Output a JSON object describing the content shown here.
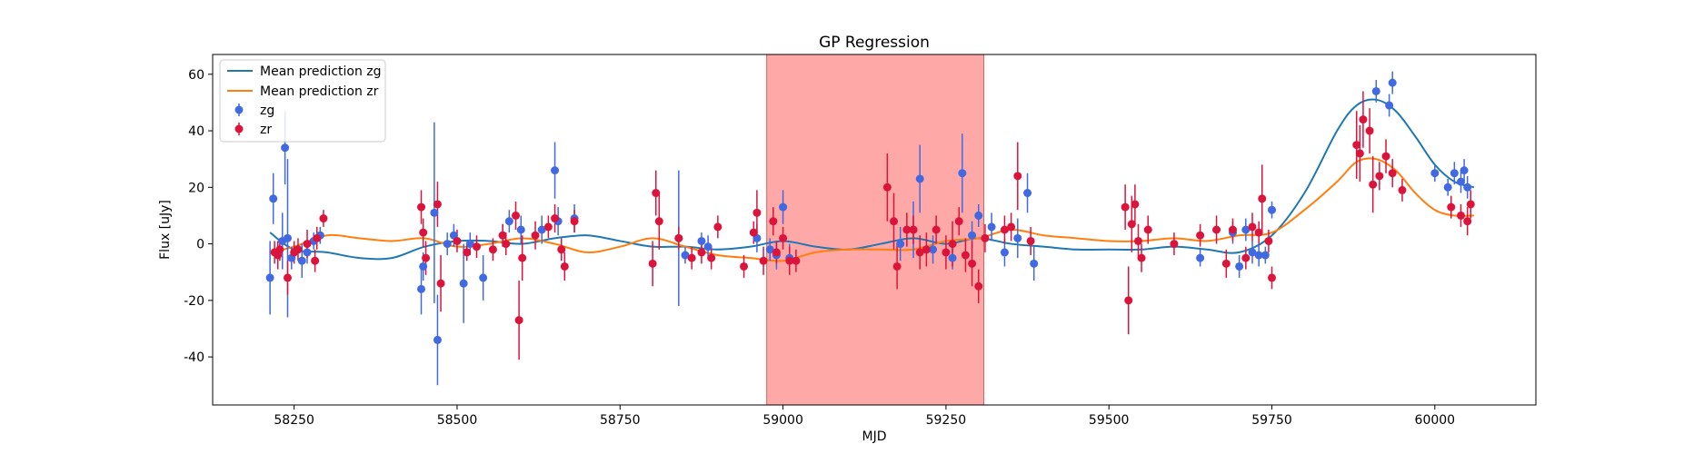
{
  "chart_data": {
    "type": "scatter",
    "title": "GP Regression",
    "xlabel": "MJD",
    "ylabel": "Flux [uJy]",
    "xlim": [
      58125,
      60155
    ],
    "ylim": [
      -57,
      67
    ],
    "xticks": [
      58250,
      58500,
      58750,
      59000,
      59250,
      59500,
      59750,
      60000
    ],
    "yticks": [
      -40,
      -20,
      0,
      20,
      40,
      60
    ],
    "grid": false,
    "legend_position": "top-left",
    "shaded_region": {
      "x0": 58975,
      "x1": 59308,
      "color": "#ff9999"
    },
    "colors": {
      "zg_points": "#4169e1",
      "zr_points": "#dc143c",
      "zg_line": "#1f77b4",
      "zr_line": "#ff7f0e"
    },
    "legend": {
      "line_zg": "Mean prediction zg",
      "line_zr": "Mean prediction zr",
      "points_zg": "zg",
      "points_zr": "zr"
    },
    "series": [
      {
        "name": "zg",
        "kind": "points",
        "x": [
          58213,
          58218,
          58232,
          58236,
          58240,
          58246,
          58262,
          58270,
          58280,
          58290,
          58445,
          58448,
          58465,
          58470,
          58485,
          58495,
          58510,
          58520,
          58540,
          58570,
          58580,
          58598,
          58630,
          58650,
          58655,
          58680,
          58840,
          58850,
          58875,
          58885,
          58960,
          58980,
          58990,
          59000,
          59010,
          59180,
          59200,
          59210,
          59230,
          59260,
          59275,
          59290,
          59300,
          59320,
          59340,
          59360,
          59375,
          59385,
          59640,
          59690,
          59700,
          59710,
          59720,
          59730,
          59740,
          59750,
          59910,
          59930,
          59935,
          60000,
          60020,
          60030,
          60040,
          60045,
          60050
        ],
        "y": [
          -12,
          16,
          1,
          34,
          2,
          -5,
          -6,
          -3,
          1,
          3,
          -16,
          -8,
          11,
          -34,
          0,
          3,
          -14,
          0,
          -12,
          3,
          8,
          5,
          5,
          26,
          8,
          9,
          2,
          -4,
          1,
          -1,
          2,
          -2,
          -4,
          13,
          -5,
          0,
          5,
          23,
          -2,
          -5,
          25,
          3,
          10,
          6,
          -3,
          2,
          18,
          -7,
          -5,
          4,
          -8,
          5,
          -3,
          -4,
          -4,
          12,
          54,
          49,
          57,
          25,
          20,
          25,
          22,
          26,
          20
        ],
        "err": [
          13,
          9,
          10,
          13,
          28,
          4,
          6,
          4,
          3,
          3,
          9,
          5,
          32,
          16,
          4,
          4,
          14,
          4,
          8,
          4,
          4,
          5,
          5,
          10,
          5,
          5,
          24,
          3,
          3,
          4,
          5,
          4,
          5,
          6,
          5,
          6,
          10,
          12,
          5,
          4,
          14,
          5,
          4,
          5,
          5,
          7,
          7,
          6,
          3,
          4,
          4,
          4,
          4,
          4,
          3,
          3,
          4,
          4,
          4,
          3,
          3,
          4,
          4,
          4,
          4
        ]
      },
      {
        "name": "zr",
        "kind": "points",
        "x": [
          58220,
          58225,
          58228,
          58240,
          58250,
          58256,
          58270,
          58282,
          58285,
          58295,
          58445,
          58448,
          58452,
          58470,
          58475,
          58500,
          58515,
          58530,
          58555,
          58570,
          58575,
          58590,
          58595,
          58600,
          58620,
          58640,
          58650,
          58660,
          58665,
          58680,
          58800,
          58805,
          58810,
          58840,
          58860,
          58875,
          58890,
          58900,
          58940,
          58955,
          58960,
          58970,
          58985,
          58990,
          59000,
          59010,
          59020,
          59160,
          59170,
          59175,
          59190,
          59200,
          59210,
          59220,
          59235,
          59250,
          59260,
          59270,
          59280,
          59290,
          59300,
          59310,
          59340,
          59350,
          59360,
          59380,
          59525,
          59530,
          59535,
          59540,
          59545,
          59550,
          59560,
          59600,
          59640,
          59665,
          59680,
          59690,
          59710,
          59720,
          59730,
          59735,
          59745,
          59750,
          59880,
          59885,
          59890,
          59900,
          59905,
          59915,
          59925,
          59935,
          59950,
          60025,
          60040,
          60050,
          60055
        ],
        "y": [
          -3,
          -4,
          -2,
          -12,
          -3,
          -2,
          0,
          -6,
          2,
          9,
          13,
          4,
          -5,
          14,
          -14,
          1,
          -3,
          -1,
          -2,
          3,
          0,
          10,
          -27,
          -5,
          3,
          6,
          9,
          -2,
          -8,
          8,
          -7,
          18,
          8,
          2,
          -5,
          -3,
          -5,
          6,
          -8,
          4,
          11,
          -6,
          8,
          -3,
          2,
          -6,
          -6,
          20,
          8,
          -8,
          5,
          5,
          -3,
          -2,
          5,
          -3,
          0,
          8,
          -4,
          -7,
          -15,
          2,
          5,
          6,
          24,
          1,
          13,
          -20,
          7,
          14,
          1,
          -5,
          5,
          0,
          3,
          5,
          -7,
          5,
          -5,
          6,
          4,
          16,
          1,
          -12,
          35,
          32,
          44,
          40,
          21,
          24,
          31,
          25,
          19,
          13,
          10,
          8,
          14
        ],
        "err": [
          4,
          5,
          4,
          6,
          4,
          4,
          5,
          4,
          4,
          3,
          6,
          5,
          6,
          8,
          10,
          4,
          3,
          4,
          4,
          4,
          4,
          5,
          14,
          8,
          5,
          4,
          5,
          4,
          5,
          4,
          8,
          8,
          10,
          4,
          4,
          4,
          4,
          4,
          4,
          4,
          8,
          5,
          5,
          4,
          4,
          5,
          4,
          12,
          10,
          8,
          6,
          5,
          6,
          6,
          5,
          6,
          8,
          5,
          6,
          8,
          6,
          5,
          5,
          5,
          12,
          5,
          8,
          12,
          10,
          7,
          6,
          5,
          5,
          4,
          4,
          5,
          5,
          4,
          4,
          5,
          4,
          12,
          4,
          4,
          12,
          10,
          10,
          8,
          10,
          5,
          6,
          5,
          4,
          4,
          4,
          5,
          5
        ]
      },
      {
        "name": "Mean prediction zg",
        "kind": "line",
        "x": [
          58213,
          58250,
          58300,
          58350,
          58400,
          58450,
          58500,
          58550,
          58600,
          58650,
          58700,
          58750,
          58800,
          58850,
          58900,
          58950,
          59000,
          59050,
          59100,
          59150,
          59200,
          59250,
          59300,
          59350,
          59400,
          59450,
          59500,
          59550,
          59600,
          59650,
          59700,
          59750,
          59800,
          59850,
          59880,
          59910,
          59940,
          59970,
          60000,
          60030,
          60060
        ],
        "y": [
          4,
          -2,
          -3,
          -5,
          -5,
          -1,
          1,
          1,
          0,
          2,
          3,
          1,
          -1,
          -1,
          -2,
          -1,
          1,
          -1,
          -2,
          0,
          2,
          0,
          2,
          0,
          -1,
          -2,
          -2,
          -2,
          -1,
          -2,
          -3,
          3,
          18,
          40,
          49,
          51,
          47,
          38,
          28,
          22,
          20
        ]
      },
      {
        "name": "Mean prediction zr",
        "kind": "line",
        "x": [
          58213,
          58250,
          58300,
          58350,
          58400,
          58450,
          58500,
          58550,
          58600,
          58650,
          58700,
          58750,
          58800,
          58850,
          58900,
          58950,
          59000,
          59050,
          59100,
          59150,
          59200,
          59250,
          59300,
          59350,
          59400,
          59450,
          59500,
          59550,
          59600,
          59650,
          59700,
          59750,
          59800,
          59850,
          59880,
          59910,
          59940,
          59970,
          60000,
          60030,
          60060
        ],
        "y": [
          -3,
          -1,
          3,
          2,
          1,
          2,
          -1,
          0,
          2,
          0,
          -3,
          -1,
          2,
          -1,
          -4,
          -5,
          -6,
          -3,
          -2,
          -2,
          -2,
          1,
          2,
          5,
          3,
          2,
          1,
          1,
          2,
          1,
          3,
          4,
          12,
          22,
          29,
          30,
          26,
          18,
          12,
          10,
          10
        ]
      }
    ]
  }
}
